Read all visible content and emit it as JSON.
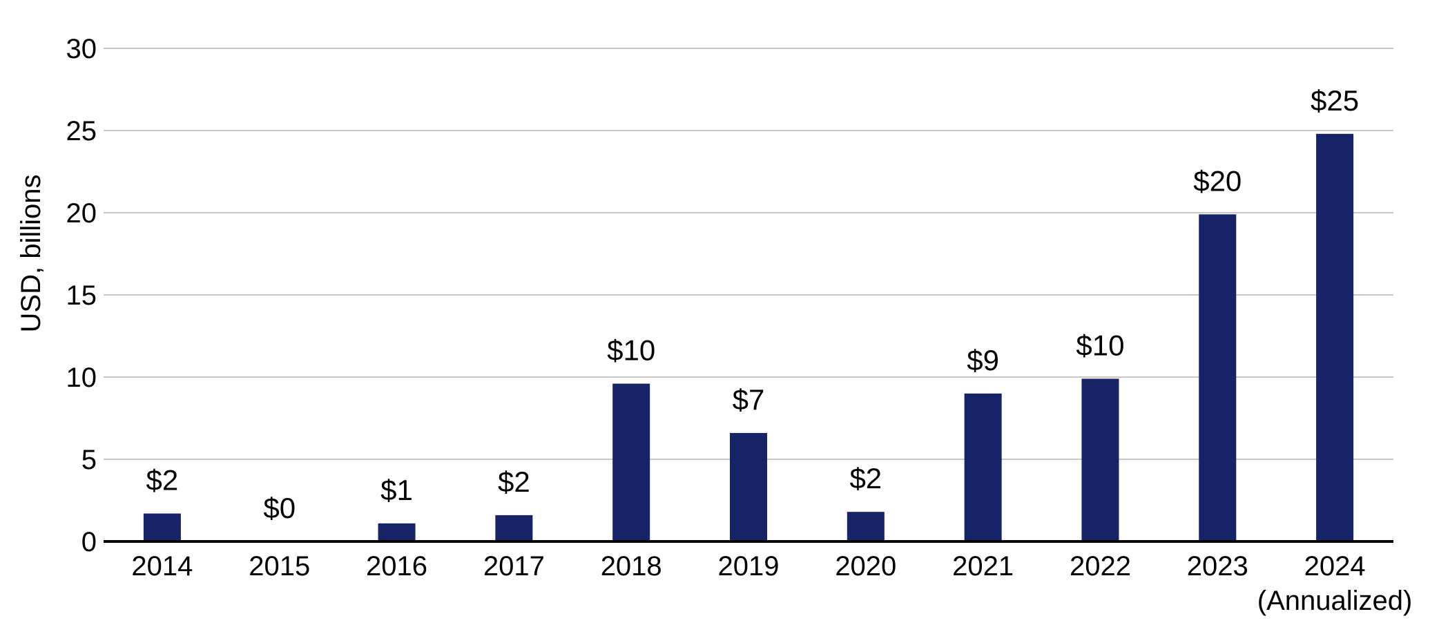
{
  "chart_data": {
    "type": "bar",
    "categories": [
      "2014",
      "2015",
      "2016",
      "2017",
      "2018",
      "2019",
      "2020",
      "2021",
      "2022",
      "2023",
      "2024"
    ],
    "category_sublabels": [
      "",
      "",
      "",
      "",
      "",
      "",
      "",
      "",
      "",
      "",
      "(Annualized)"
    ],
    "values": [
      1.7,
      0,
      1.1,
      1.6,
      9.6,
      6.6,
      1.8,
      9.0,
      9.9,
      19.9,
      24.8
    ],
    "data_labels": [
      "$2",
      "$0",
      "$1",
      "$2",
      "$10",
      "$7",
      "$2",
      "$9",
      "$10",
      "$20",
      "$25"
    ],
    "title": "",
    "xlabel": "",
    "ylabel": "USD, billions",
    "ylim": [
      0,
      30
    ],
    "yticks": [
      0,
      5,
      10,
      15,
      20,
      25,
      30
    ],
    "grid": true,
    "legend": "none",
    "colors": {
      "bar": "#162366",
      "grid": "#c8c8c8",
      "axis": "#000000"
    }
  }
}
